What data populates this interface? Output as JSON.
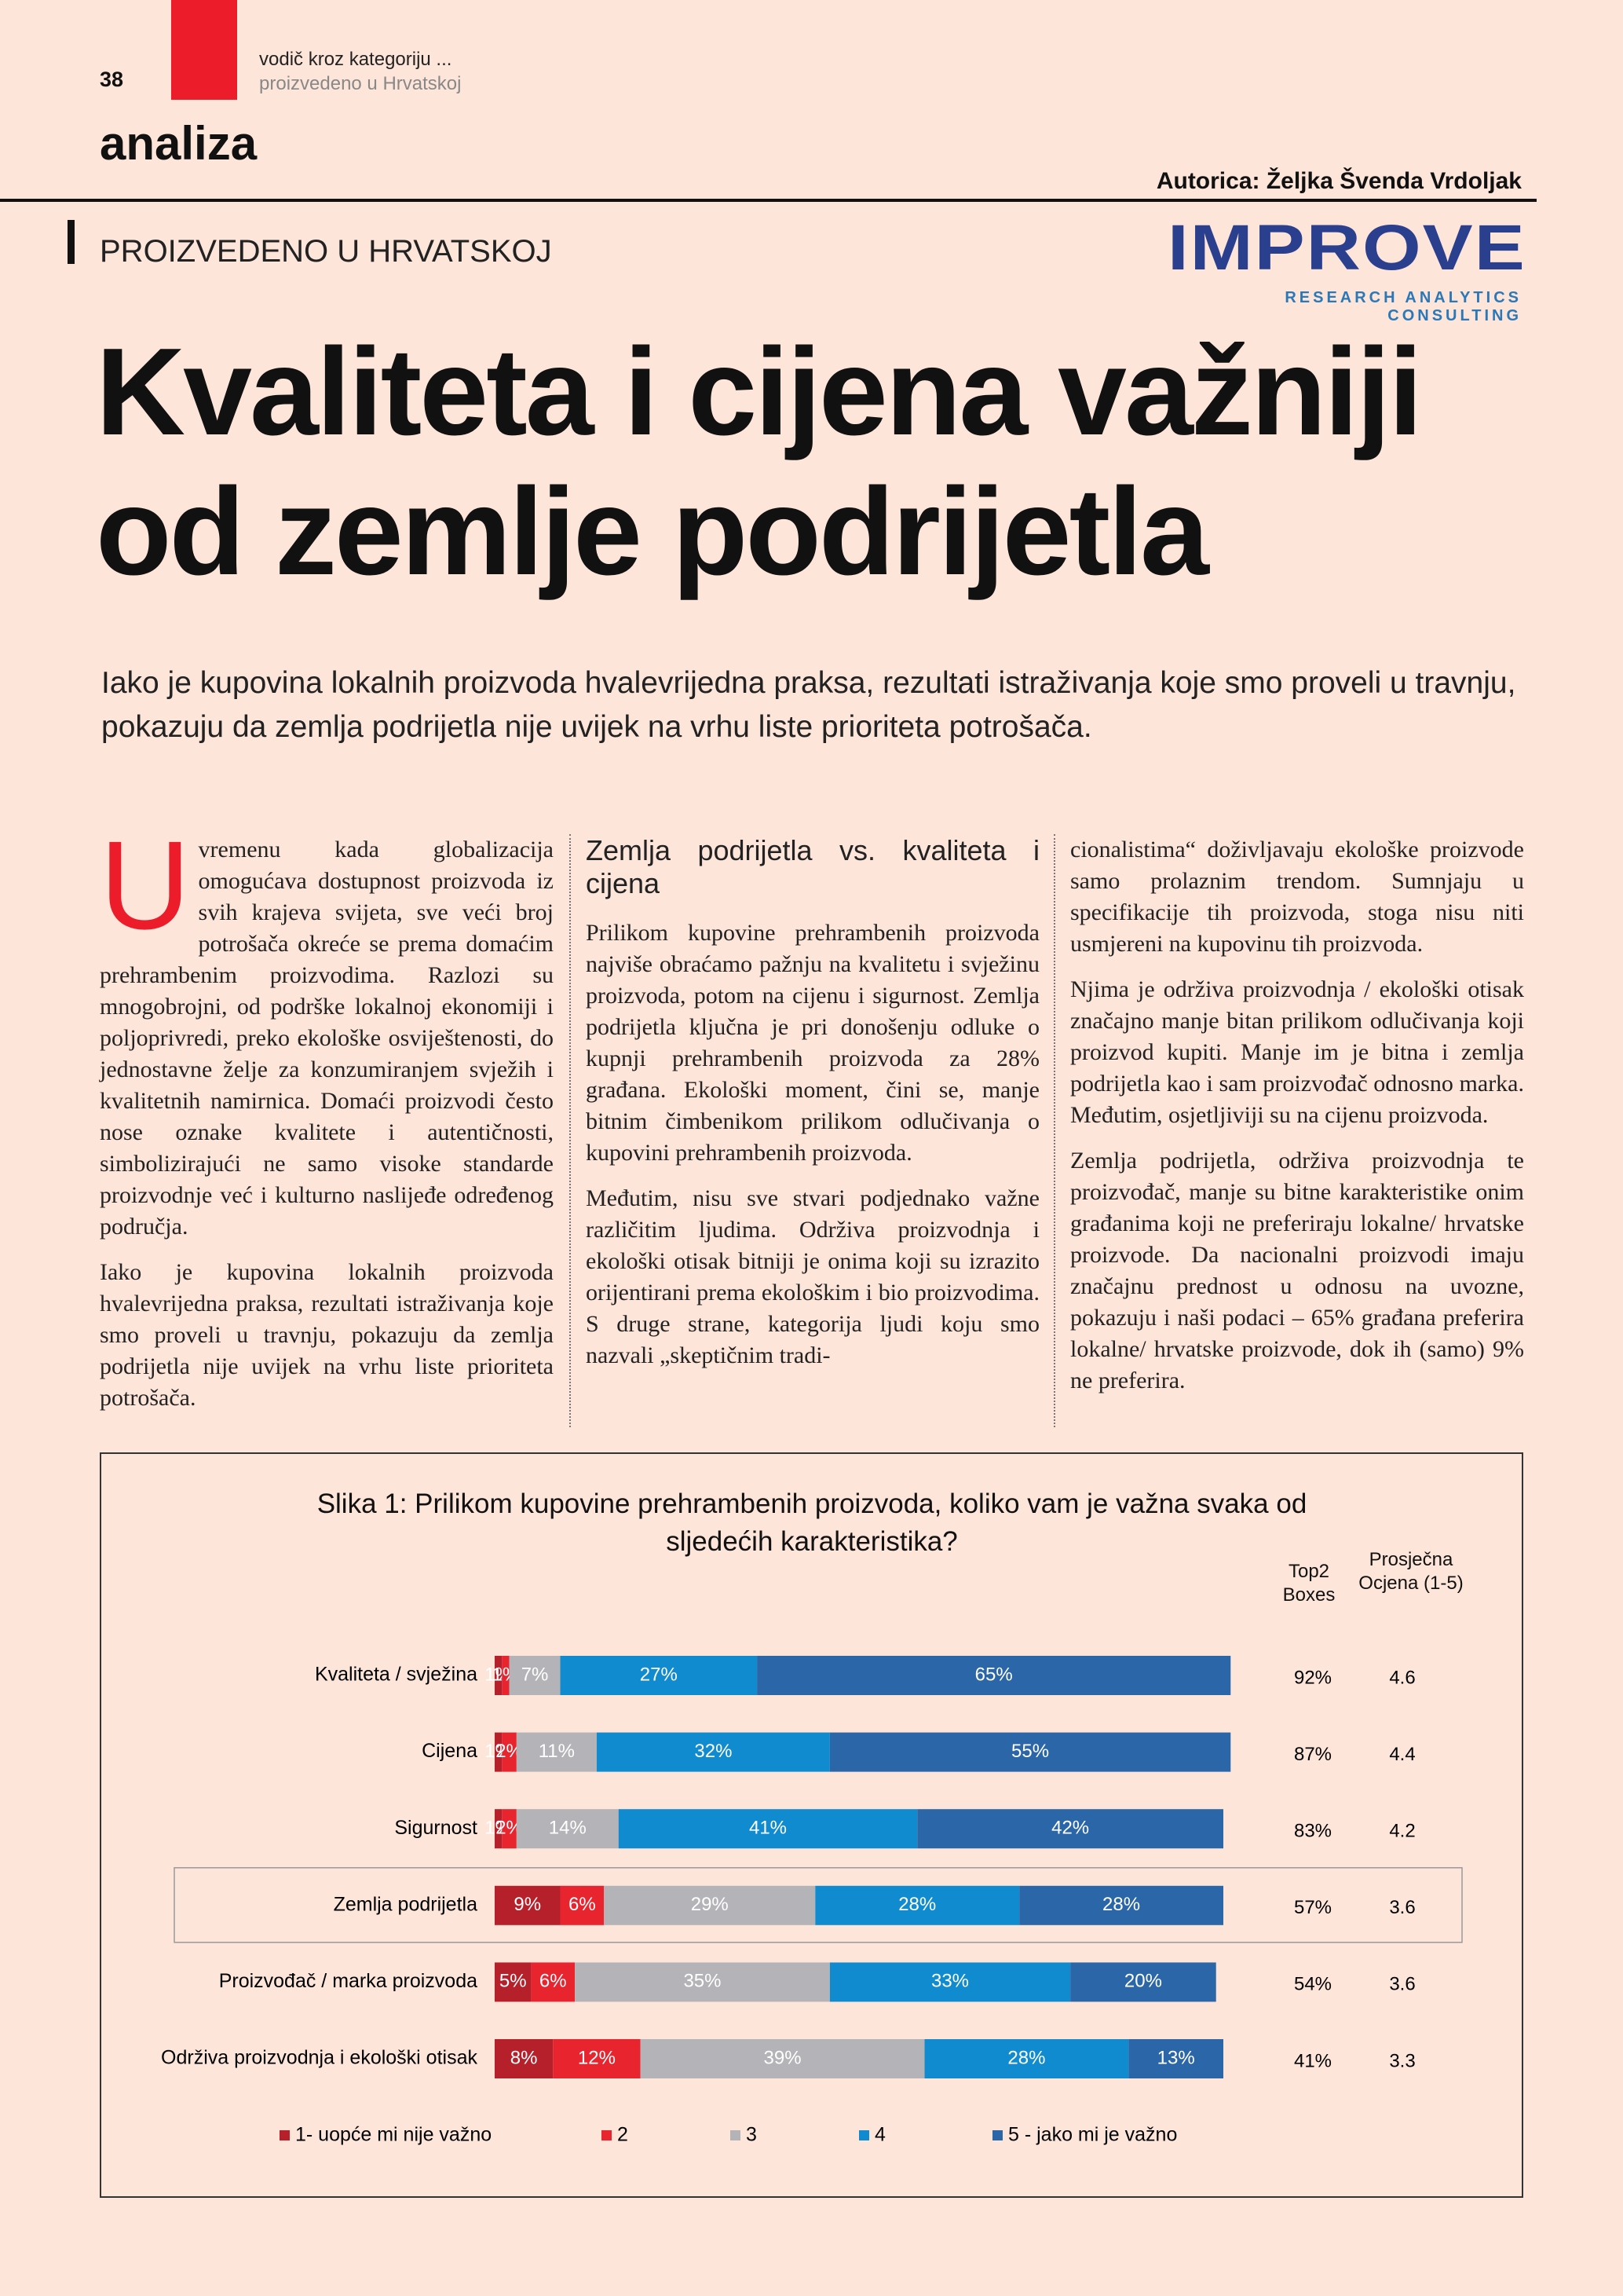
{
  "header": {
    "page_number": "38",
    "section": "vodič kroz kategoriju ...",
    "subsection": "proizvedeno u Hrvatskoj",
    "rubric": "analiza",
    "author": "Autorica: Željka Švenda Vrdoljak",
    "kicker": "PROIZVEDENO U HRVATSKOJ",
    "logo": {
      "name": "IMPROVE",
      "tagline": "RESEARCH ANALYTICS CONSULTING"
    }
  },
  "article": {
    "title": [
      "Kvaliteta i cijena važniji",
      "od zemlje podrijetla"
    ],
    "lead": "Iako je kupovina lokalnih proizvoda hvalevrijedna praksa, rezultati istraživanja koje smo proveli u travnju, pokazuju da zemlja podrijetla nije uvijek na vrhu liste prioriteta potrošača.",
    "columns": [
      {
        "drop_cap": "U",
        "paragraphs": [
          "vremenu kada globalizacija omogućava dostupnost proizvoda iz svih krajeva svijeta, sve veći broj potrošača okreće se prema domaćim prehrambenim proizvodima. Razlozi su mnogobrojni, od podrške lokalnoj ekonomiji i poljoprivredi, preko ekološke osviještenosti, do jednostavne želje za konzumiranjem svježih i kvalitetnih namirnica. Domaći proizvodi često nose oznake kvalitete i autentičnosti, simbolizirajući ne samo visoke standarde proizvodnje već i kulturno naslijeđe određenog područja.",
          "Iako je kupovina lokalnih proizvoda hvalevrijedna praksa, rezultati istraživanja koje smo proveli u travnju, pokazuju da zemlja podrijetla nije uvijek na vrhu liste prioriteta potrošača."
        ]
      },
      {
        "heading": "Zemlja podrijetla vs. kvaliteta i cijena",
        "paragraphs": [
          "Prilikom kupovine prehrambenih proizvoda najviše obraćamo pažnju na kvalitetu i svježinu proizvoda, potom na cijenu i sigurnost. Zemlja podrijetla ključna je pri donošenju odluke o kupnji prehrambenih proizvoda za 28% građana. Ekološki moment, čini se, manje bitnim čimbenikom prilikom odlučivanja o kupovini prehrambenih proizvoda.",
          "Međutim, nisu sve stvari podjednako važne različitim ljudima. Održiva proizvodnja i ekološki otisak bitniji je onima koji su izrazito orijentirani prema ekološkim i bio proizvodima. S druge strane, kategorija ljudi koju smo nazvali „skeptičnim tradi-"
        ]
      },
      {
        "paragraphs": [
          "cionalistima“ doživljavaju ekološke proizvode samo prolaznim trendom. Sumnjaju u specifikacije tih proizvoda, stoga nisu niti usmjereni na kupovinu tih proizvoda.",
          "Njima je održiva proizvodnja / ekološki otisak značajno manje bitan prilikom odlučivanja koji proizvod kupiti. Manje im je bitna i zemlja podrijetla kao i sam proizvođač odnosno marka. Međutim, osjetljiviji su na cijenu proizvoda.",
          "Zemlja podrijetla, održiva proizvodnja te proizvođač, manje su bitne karakteristike onim građanima koji ne preferiraju lokalne/ hrvatske proizvode. Da nacionalni proizvodi imaju značajnu prednost u odnosu na uvozne, pokazuju i naši podaci – 65% građana preferira lokalne/ hrvatske proizvode, dok ih (samo) 9% ne preferira."
        ]
      }
    ]
  },
  "chart_data": {
    "type": "bar",
    "orientation": "horizontal",
    "stacked": true,
    "title": "Slika 1: Prilikom kupovine prehrambenih proizvoda, koliko vam je važna svaka od sljedećih karakteristika?",
    "categories": [
      "Kvaliteta / svježina",
      "Cijena",
      "Sigurnost",
      "Zemlja podrijetla",
      "Proizvođač / marka proizvoda",
      "Održiva proizvodnja i ekološki otisak"
    ],
    "xlim": [
      0,
      100
    ],
    "series": [
      {
        "name": "1- uopće mi nije važno",
        "color": "#b5202b",
        "values": [
          1,
          1,
          1,
          9,
          5,
          8
        ],
        "value_labels": [
          "1%",
          "1%",
          "1%",
          "9%",
          "5%",
          "8%"
        ]
      },
      {
        "name": "2",
        "color": "#e8242f",
        "values": [
          1,
          2,
          2,
          6,
          6,
          12
        ],
        "value_labels": [
          "1%",
          "2%",
          "2%",
          "6%",
          "6%",
          "12%"
        ]
      },
      {
        "name": "3",
        "color": "#b4b4b8",
        "values": [
          7,
          11,
          14,
          29,
          35,
          39
        ],
        "value_labels": [
          "7%",
          "11%",
          "14%",
          "29%",
          "35%",
          "39%"
        ]
      },
      {
        "name": "4",
        "color": "#108bd0",
        "values": [
          27,
          32,
          41,
          28,
          33,
          28
        ],
        "value_labels": [
          "27%",
          "32%",
          "41%",
          "28%",
          "33%",
          "28%"
        ]
      },
      {
        "name": "5 - jako mi je važno",
        "color": "#2b66a8",
        "values": [
          65,
          55,
          42,
          28,
          20,
          13
        ],
        "value_labels": [
          "65%",
          "55%",
          "42%",
          "28%",
          "20%",
          "13%"
        ]
      }
    ],
    "top2": {
      "header": "Top2 Boxes",
      "labels": [
        "92%",
        "87%",
        "83%",
        "57%",
        "54%",
        "41%"
      ]
    },
    "average": {
      "header": "Prosječna Ocjena (1-5)",
      "labels": [
        "4.6",
        "4.4",
        "4.2",
        "3.6",
        "3.6",
        "3.3"
      ]
    },
    "highlight": "Zemlja podrijetla"
  }
}
